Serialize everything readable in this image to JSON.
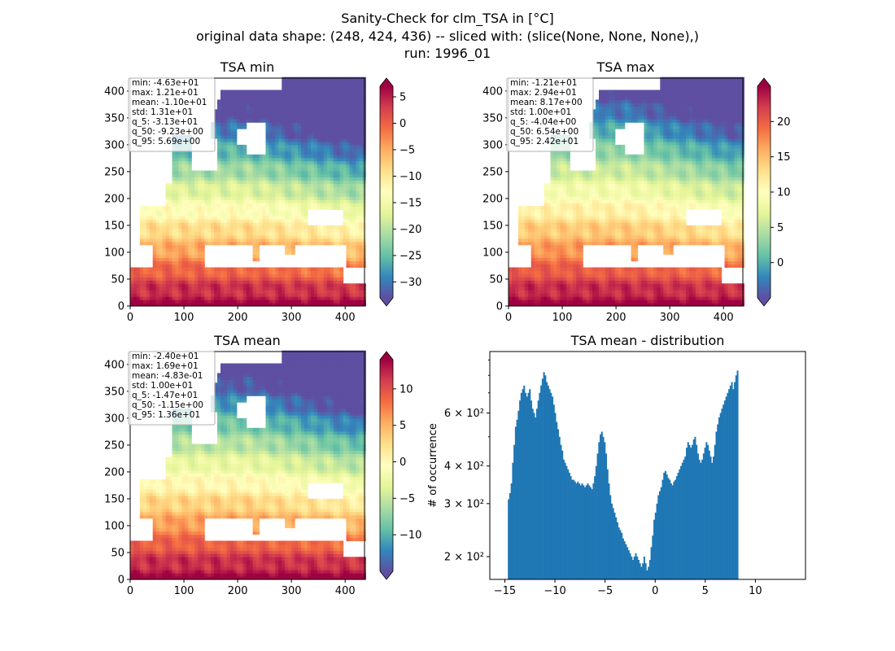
{
  "suptitle": {
    "line1": "Sanity-Check for clm_TSA in [°C]",
    "line2": "original data shape: (248, 424, 436) -- sliced with: (slice(None, None, None),)",
    "line3": "run: 1996_01"
  },
  "colors": {
    "hist_bar": "#1f77b4",
    "axes": "#000000",
    "stats_box_edge": "#b0b0b0"
  },
  "colormap": {
    "name": "Spectral_r",
    "stops": [
      "#5e4fa2",
      "#3288bd",
      "#66c2a5",
      "#abdda4",
      "#e6f598",
      "#ffffbf",
      "#fee08b",
      "#fdae61",
      "#f46d43",
      "#d53e4f",
      "#9e0142"
    ]
  },
  "chart_data": [
    {
      "type": "heatmap",
      "title": "TSA min",
      "xticks": [
        "0",
        "100",
        "200",
        "300",
        "400"
      ],
      "yticks": [
        "0",
        "50",
        "100",
        "150",
        "200",
        "250",
        "300",
        "350",
        "400"
      ],
      "xlim": [
        0,
        436
      ],
      "ylim": [
        0,
        424
      ],
      "colorbar": {
        "vmin": -33,
        "vmax": 7,
        "ticks": [
          "5",
          "0",
          "−5",
          "−10",
          "−15",
          "−20",
          "−25",
          "−30"
        ],
        "tick_values": [
          5,
          0,
          -5,
          -10,
          -15,
          -20,
          -25,
          -30
        ],
        "extend": "both"
      },
      "stats": [
        "min: -4.63e+01",
        "max: 1.21e+01",
        "mean: -1.10e+01",
        "std: 1.31e+01",
        "q_5: -3.13e+01",
        "q_50: -9.23e+00",
        "q_95: 5.69e+00"
      ],
      "stats_placement": "top-left"
    },
    {
      "type": "heatmap",
      "title": "TSA max",
      "xticks": [
        "0",
        "100",
        "200",
        "300",
        "400"
      ],
      "yticks": [
        "0",
        "50",
        "100",
        "150",
        "200",
        "250",
        "300",
        "350",
        "400"
      ],
      "xlim": [
        0,
        436
      ],
      "ylim": [
        0,
        424
      ],
      "colorbar": {
        "vmin": -5,
        "vmax": 25,
        "ticks": [
          "20",
          "15",
          "10",
          "5",
          "0"
        ],
        "tick_values": [
          20,
          15,
          10,
          5,
          0
        ],
        "extend": "both"
      },
      "stats": [
        "min: -1.21e+01",
        "max: 2.94e+01",
        "mean: 8.17e+00",
        "std: 1.00e+01",
        "q_5: -4.04e+00",
        "q_50: 6.54e+00",
        "q_95: 2.42e+01"
      ],
      "stats_placement": "top-left"
    },
    {
      "type": "heatmap",
      "title": "TSA mean",
      "xticks": [
        "0",
        "100",
        "200",
        "300",
        "400"
      ],
      "yticks": [
        "0",
        "50",
        "100",
        "150",
        "200",
        "250",
        "300",
        "350",
        "400"
      ],
      "xlim": [
        0,
        436
      ],
      "ylim": [
        0,
        424
      ],
      "colorbar": {
        "vmin": -15,
        "vmax": 14,
        "ticks": [
          "10",
          "5",
          "0",
          "−5",
          "−10"
        ],
        "tick_values": [
          10,
          5,
          0,
          -5,
          -10
        ],
        "extend": "both"
      },
      "stats": [
        "min: -2.40e+01",
        "max: 1.69e+01",
        "mean: -4.83e-01",
        "std: 1.00e+01",
        "q_5: -1.47e+01",
        "q_50: -1.15e+00",
        "q_95: 1.36e+01"
      ],
      "stats_placement": "top-left"
    },
    {
      "type": "bar",
      "title": "TSA mean - distribution",
      "ylabel": "# of occurrence",
      "yscale": "log",
      "xlim": [
        -16.5,
        15
      ],
      "ylim": [
        168,
        960
      ],
      "xticks": [
        "−15",
        "−10",
        "−5",
        "0",
        "5",
        "10"
      ],
      "xtick_values": [
        -15,
        -10,
        -5,
        0,
        5,
        10
      ],
      "yticks": [
        "2 × 10²",
        "3 × 10²",
        "4 × 10²",
        "6 × 10²"
      ],
      "ytick_values": [
        200,
        300,
        400,
        600
      ],
      "bin_start": -14.7,
      "bin_width": 0.141,
      "values": [
        310,
        325,
        350,
        410,
        470,
        540,
        570,
        610,
        660,
        700,
        720,
        740,
        700,
        680,
        700,
        720,
        660,
        620,
        600,
        580,
        620,
        660,
        700,
        740,
        780,
        820,
        800,
        760,
        740,
        720,
        700,
        680,
        640,
        600,
        560,
        530,
        500,
        470,
        450,
        420,
        410,
        400,
        390,
        380,
        370,
        360,
        360,
        355,
        350,
        355,
        350,
        345,
        350,
        345,
        340,
        345,
        350,
        345,
        340,
        335,
        350,
        370,
        400,
        440,
        480,
        510,
        520,
        500,
        480,
        440,
        390,
        350,
        320,
        300,
        290,
        280,
        270,
        260,
        250,
        245,
        240,
        230,
        225,
        220,
        215,
        210,
        205,
        200,
        195,
        200,
        205,
        200,
        195,
        190,
        185,
        190,
        200,
        190,
        180,
        185,
        195,
        215,
        235,
        265,
        280,
        300,
        320,
        330,
        340,
        360,
        380,
        385,
        375,
        365,
        360,
        350,
        345,
        355,
        360,
        370,
        380,
        390,
        400,
        410,
        420,
        430,
        460,
        480,
        470,
        460,
        470,
        490,
        500,
        470,
        440,
        420,
        410,
        420,
        440,
        460,
        480,
        470,
        450,
        430,
        410,
        430,
        470,
        520,
        550,
        580,
        600,
        620,
        640,
        660,
        680,
        700,
        720,
        740,
        760,
        720,
        760,
        800,
        830
      ]
    }
  ]
}
